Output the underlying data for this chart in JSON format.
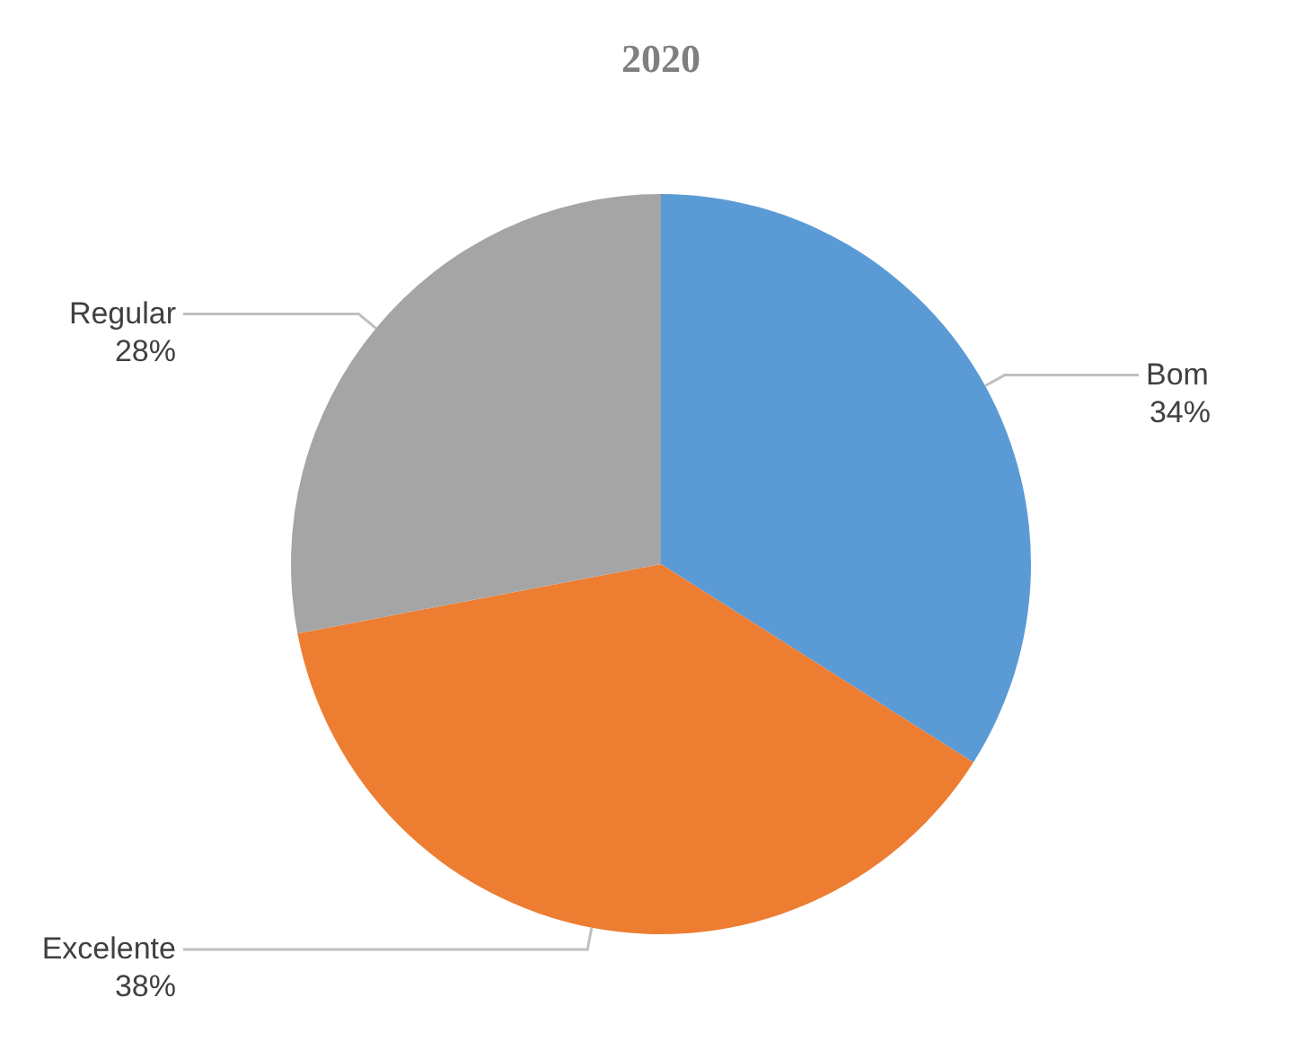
{
  "chart_data": {
    "type": "pie",
    "title": "2020",
    "categories": [
      "Bom",
      "Excelente",
      "Regular"
    ],
    "values": [
      34,
      38,
      28
    ],
    "colors": [
      "#5b9bd5",
      "#ed7d31",
      "#a5a5a5"
    ],
    "value_labels": [
      "34%",
      "38%",
      "28%"
    ]
  }
}
